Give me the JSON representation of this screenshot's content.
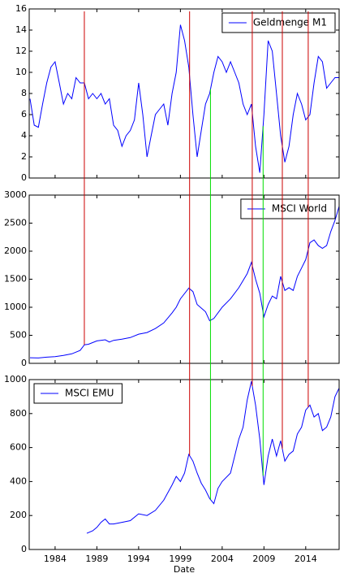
{
  "chart_data": [
    {
      "type": "line",
      "xlim": [
        1980.9,
        2018.0
      ],
      "xticks": [
        1984,
        1989,
        1994,
        1999,
        2004,
        2009,
        2014
      ],
      "ylim": [
        0,
        16
      ],
      "yticks": [
        0,
        2,
        4,
        6,
        8,
        10,
        12,
        14,
        16
      ],
      "legend": "upper right",
      "series": [
        {
          "name": "Geldmenge M1",
          "color": "#0000ff",
          "x": [
            1981,
            1981.5,
            1982,
            1982.5,
            1983,
            1983.5,
            1984,
            1984.5,
            1985,
            1985.5,
            1986,
            1986.5,
            1987,
            1987.5,
            1988,
            1988.5,
            1989,
            1989.5,
            1990,
            1990.5,
            1991,
            1991.5,
            1992,
            1992.5,
            1993,
            1993.5,
            1994,
            1994.5,
            1995,
            1995.5,
            1996,
            1996.5,
            1997,
            1997.5,
            1998,
            1998.5,
            1999,
            1999.5,
            2000,
            2000.5,
            2001,
            2001.5,
            2002,
            2002.5,
            2003,
            2003.5,
            2004,
            2004.5,
            2005,
            2005.5,
            2006,
            2006.5,
            2007,
            2007.5,
            2008,
            2008.5,
            2009,
            2009.5,
            2010,
            2010.5,
            2011,
            2011.5,
            2012,
            2012.5,
            2013,
            2013.5,
            2014,
            2014.5,
            2015,
            2015.5,
            2016,
            2016.5,
            2017,
            2017.5,
            2018
          ],
          "values": [
            7.5,
            5,
            4.8,
            7,
            9,
            10.5,
            11,
            9,
            7,
            8,
            7.5,
            9.5,
            9,
            9,
            7.5,
            8,
            7.5,
            8,
            7,
            7.5,
            5,
            4.5,
            3,
            4,
            4.5,
            5.5,
            9,
            6,
            2,
            4,
            6,
            6.5,
            7,
            5,
            8,
            10,
            14.5,
            13,
            10.5,
            6,
            2,
            4.5,
            7,
            8,
            10,
            11.5,
            11,
            10,
            11,
            10,
            9,
            7,
            6,
            7,
            3,
            0.5,
            6,
            13,
            12,
            8,
            4,
            1.5,
            3,
            6,
            8,
            7,
            5.5,
            6,
            9,
            11.5,
            11,
            8.5,
            9,
            9.5,
            9.5
          ]
        }
      ],
      "vlines": [
        {
          "x": 1987.5,
          "color": "#cc0000"
        },
        {
          "x": 2000.1,
          "color": "#cc0000"
        },
        {
          "x": 2002.6,
          "color": "#00dd00"
        },
        {
          "x": 2007.6,
          "color": "#cc0000"
        },
        {
          "x": 2008.9,
          "color": "#00dd00"
        },
        {
          "x": 2011.2,
          "color": "#cc0000"
        },
        {
          "x": 2014.3,
          "color": "#cc0000"
        }
      ]
    },
    {
      "type": "line",
      "xlim": [
        1980.9,
        2018.0
      ],
      "xticks": [
        1984,
        1989,
        1994,
        1999,
        2004,
        2009,
        2014
      ],
      "ylim": [
        0,
        3000
      ],
      "yticks": [
        0,
        500,
        1000,
        1500,
        2000,
        2500,
        3000
      ],
      "legend": "upper right",
      "series": [
        {
          "name": "MSCI World",
          "color": "#0000ff",
          "x": [
            1981,
            1982,
            1983,
            1984,
            1985,
            1986,
            1987,
            1987.5,
            1988,
            1989,
            1990,
            1990.5,
            1991,
            1992,
            1993,
            1994,
            1995,
            1996,
            1997,
            1998,
            1998.5,
            1999,
            2000,
            2000.5,
            2001,
            2002,
            2002.5,
            2003,
            2004,
            2005,
            2006,
            2007,
            2007.5,
            2008,
            2008.5,
            2009,
            2009.5,
            2010,
            2010.5,
            2011,
            2011.5,
            2012,
            2012.5,
            2013,
            2013.5,
            2014,
            2014.5,
            2015,
            2015.5,
            2016,
            2016.5,
            2017,
            2017.5,
            2018
          ],
          "values": [
            100,
            95,
            110,
            120,
            140,
            170,
            230,
            330,
            340,
            400,
            420,
            380,
            410,
            430,
            460,
            520,
            550,
            620,
            720,
            900,
            1000,
            1150,
            1340,
            1280,
            1050,
            920,
            760,
            800,
            1000,
            1150,
            1350,
            1600,
            1800,
            1500,
            1250,
            830,
            1050,
            1200,
            1150,
            1550,
            1300,
            1350,
            1300,
            1550,
            1700,
            1850,
            2150,
            2200,
            2100,
            2050,
            2100,
            2350,
            2550,
            2800
          ]
        }
      ]
    },
    {
      "type": "line",
      "xlim": [
        1980.9,
        2018.0
      ],
      "xticks": [
        1984,
        1989,
        1994,
        1999,
        2004,
        2009,
        2014
      ],
      "xlabel": "Date",
      "ylim": [
        0,
        1000
      ],
      "yticks": [
        0,
        200,
        400,
        600,
        800,
        1000
      ],
      "legend": "upper left",
      "series": [
        {
          "name": "MSCI EMU",
          "color": "#0000ff",
          "x": [
            1987.8,
            1988.5,
            1989,
            1989.5,
            1990,
            1990.5,
            1991,
            1992,
            1993,
            1994,
            1995,
            1996,
            1997,
            1998,
            1998.5,
            1999,
            1999.5,
            2000,
            2000.5,
            2001,
            2001.5,
            2002,
            2002.5,
            2003,
            2003.5,
            2004,
            2005,
            2005.5,
            2006,
            2006.5,
            2007,
            2007.5,
            2008,
            2008.5,
            2009,
            2009.5,
            2010,
            2010.5,
            2011,
            2011.5,
            2012,
            2012.5,
            2013,
            2013.5,
            2014,
            2014.5,
            2015,
            2015.5,
            2016,
            2016.5,
            2017,
            2017.5,
            2018
          ],
          "values": [
            95,
            110,
            130,
            160,
            180,
            150,
            150,
            160,
            170,
            210,
            200,
            230,
            290,
            380,
            430,
            400,
            450,
            560,
            520,
            450,
            390,
            350,
            300,
            270,
            360,
            400,
            450,
            550,
            650,
            720,
            880,
            990,
            850,
            650,
            380,
            550,
            650,
            550,
            640,
            520,
            560,
            580,
            680,
            720,
            820,
            850,
            780,
            800,
            700,
            720,
            780,
            900,
            950
          ]
        }
      ]
    }
  ]
}
